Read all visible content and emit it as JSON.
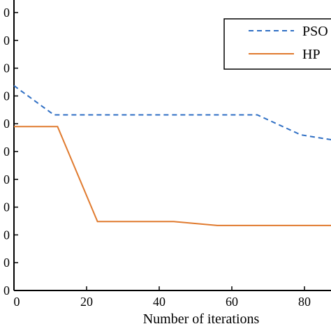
{
  "chart_data": {
    "type": "line",
    "xlabel": "Number of iterations",
    "ylabel": "",
    "xlim": [
      0,
      90
    ],
    "xticks": [
      0,
      20,
      40,
      60,
      80
    ],
    "ytick_count": 11,
    "ytick_labels": [
      "0",
      "0",
      "0",
      "0",
      "0",
      "0",
      "0",
      "0",
      "0",
      "0",
      "0"
    ],
    "grid": false,
    "legend_position": "top-right",
    "series": [
      {
        "name": "PSO",
        "color": "#2f6fc4",
        "style": "dashed",
        "points": [
          [
            0,
            0.737
          ],
          [
            11,
            0.632
          ],
          [
            67,
            0.632
          ],
          [
            79,
            0.56
          ],
          [
            90,
            0.537
          ]
        ]
      },
      {
        "name": "HP",
        "color": "#e07a2e",
        "style": "solid",
        "points": [
          [
            0,
            0.59
          ],
          [
            12,
            0.59
          ],
          [
            23,
            0.248
          ],
          [
            44,
            0.248
          ],
          [
            56,
            0.234
          ],
          [
            90,
            0.234
          ]
        ]
      }
    ]
  }
}
